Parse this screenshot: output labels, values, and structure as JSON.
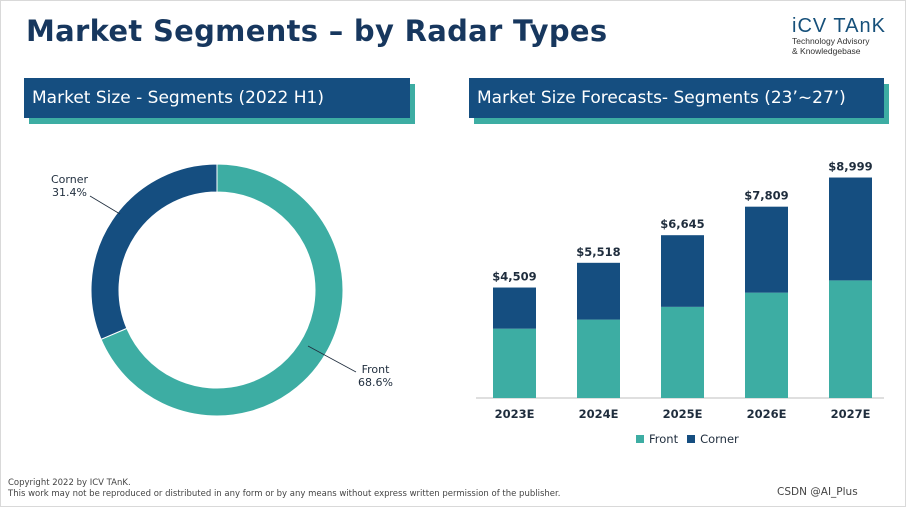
{
  "title": "Market Segments – by Radar Types",
  "logo": {
    "name": "iCV TAnK",
    "tagline_line1": "Technology Advisory",
    "tagline_line2": "& Knowledgebase"
  },
  "left_panel": {
    "heading": "Market Size - Segments (2022 H1)"
  },
  "right_panel": {
    "heading": "Market Size Forecasts- Segments (23’~27’)"
  },
  "colors": {
    "navy": "#154e80",
    "teal": "#3dada3",
    "title": "#17375e"
  },
  "chart_data": [
    {
      "type": "pie",
      "style": "donut",
      "title": "Market Size - Segments (2022 H1)",
      "slices": [
        {
          "name": "Front",
          "value": 68.6,
          "label": "68.6%",
          "color": "#3dada3"
        },
        {
          "name": "Corner",
          "value": 31.4,
          "label": "31.4%",
          "color": "#154e80"
        }
      ]
    },
    {
      "type": "bar",
      "stacked": true,
      "title": "Market Size Forecasts- Segments (23’~27’)",
      "categories": [
        "2023E",
        "2024E",
        "2025E",
        "2026E",
        "2027E"
      ],
      "series": [
        {
          "name": "Front",
          "color": "#3dada3",
          "values": [
            2830,
            3200,
            3720,
            4300,
            4800
          ]
        },
        {
          "name": "Corner",
          "color": "#154e80",
          "values": [
            1679,
            2318,
            2925,
            3509,
            4199
          ]
        }
      ],
      "totals": [
        4509,
        5518,
        6645,
        7809,
        8999
      ],
      "total_labels": [
        "$4,509",
        "$5,518",
        "$6,645",
        "$7,809",
        "$8,999"
      ],
      "ylim": [
        0,
        10000
      ],
      "legend": "bottom"
    }
  ],
  "footer": {
    "line1": "Copyright  2022 by ICV TAnK.",
    "line2": "This work may not be reproduced or distributed in any form or by any means without express written permission of the publisher."
  },
  "watermark": "CSDN @AI_Plus"
}
